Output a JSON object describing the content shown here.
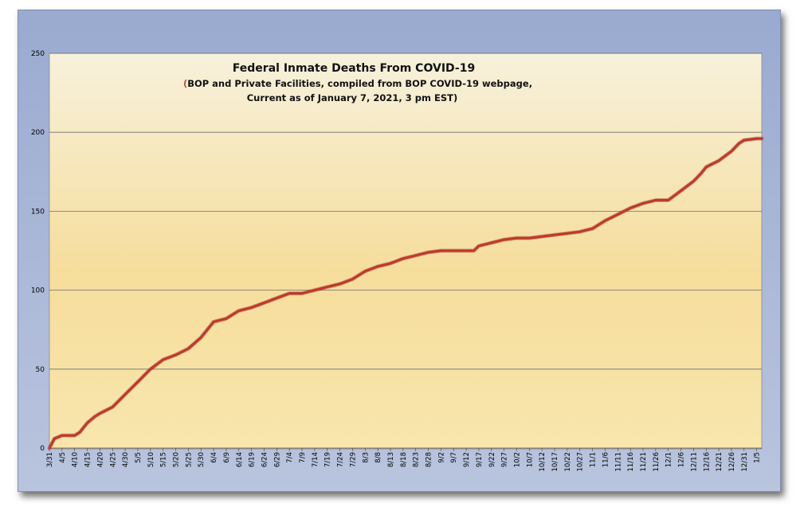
{
  "chart_data": {
    "type": "line",
    "title": "Federal Inmate Deaths From COVID-19",
    "subtitle_paren": "(",
    "subtitle_line1": "BOP and Private Facilities, compiled from BOP COVID-19 webpage,",
    "subtitle_line2": "Current as of January 7, 2021, 3 pm EST)",
    "xlabel": "",
    "ylabel": "",
    "ylim": [
      0,
      250
    ],
    "yticks": [
      0,
      50,
      100,
      150,
      200,
      250
    ],
    "grid": true,
    "x_tick_labels": [
      "3/31",
      "4/5",
      "4/10",
      "4/15",
      "4/20",
      "4/25",
      "4/30",
      "5/5",
      "5/10",
      "5/15",
      "5/20",
      "5/25",
      "5/30",
      "6/4",
      "6/9",
      "6/14",
      "6/19",
      "6/24",
      "6/29",
      "7/4",
      "7/9",
      "7/14",
      "7/19",
      "7/24",
      "7/29",
      "8/3",
      "8/8",
      "8/13",
      "8/18",
      "8/23",
      "8/28",
      "9/2",
      "9/7",
      "9/12",
      "9/17",
      "9/22",
      "9/27",
      "10/2",
      "10/7",
      "10/12",
      "10/17",
      "10/22",
      "10/27",
      "11/1",
      "11/6",
      "11/11",
      "11/16",
      "11/21",
      "11/26",
      "12/1",
      "12/6",
      "12/11",
      "12/16",
      "12/21",
      "12/26",
      "12/31",
      "1/5"
    ],
    "series": [
      {
        "name": "",
        "color": "#c0392b",
        "x": [
          "3/31",
          "4/2",
          "4/5",
          "4/8",
          "4/10",
          "4/12",
          "4/15",
          "4/18",
          "4/20",
          "4/25",
          "4/30",
          "5/5",
          "5/10",
          "5/15",
          "5/20",
          "5/25",
          "5/30",
          "6/2",
          "6/4",
          "6/9",
          "6/14",
          "6/19",
          "6/24",
          "6/29",
          "7/4",
          "7/9",
          "7/14",
          "7/19",
          "7/24",
          "7/29",
          "8/3",
          "8/8",
          "8/13",
          "8/18",
          "8/23",
          "8/28",
          "9/2",
          "9/7",
          "9/12",
          "9/15",
          "9/17",
          "9/22",
          "9/27",
          "10/2",
          "10/7",
          "10/12",
          "10/17",
          "10/22",
          "10/27",
          "11/1",
          "11/6",
          "11/11",
          "11/16",
          "11/21",
          "11/26",
          "12/1",
          "12/6",
          "12/11",
          "12/14",
          "12/16",
          "12/21",
          "12/26",
          "12/29",
          "12/31",
          "1/5",
          "1/7"
        ],
        "values": [
          0,
          6,
          8,
          8,
          8,
          10,
          16,
          20,
          22,
          26,
          34,
          42,
          50,
          56,
          59,
          63,
          70,
          76,
          80,
          82,
          87,
          89,
          92,
          95,
          98,
          98,
          100,
          102,
          104,
          107,
          112,
          115,
          117,
          120,
          122,
          124,
          125,
          125,
          125,
          125,
          128,
          130,
          132,
          133,
          133,
          134,
          135,
          136,
          137,
          139,
          144,
          148,
          152,
          155,
          157,
          157,
          163,
          169,
          174,
          178,
          182,
          188,
          193,
          195,
          196,
          196
        ]
      }
    ]
  }
}
